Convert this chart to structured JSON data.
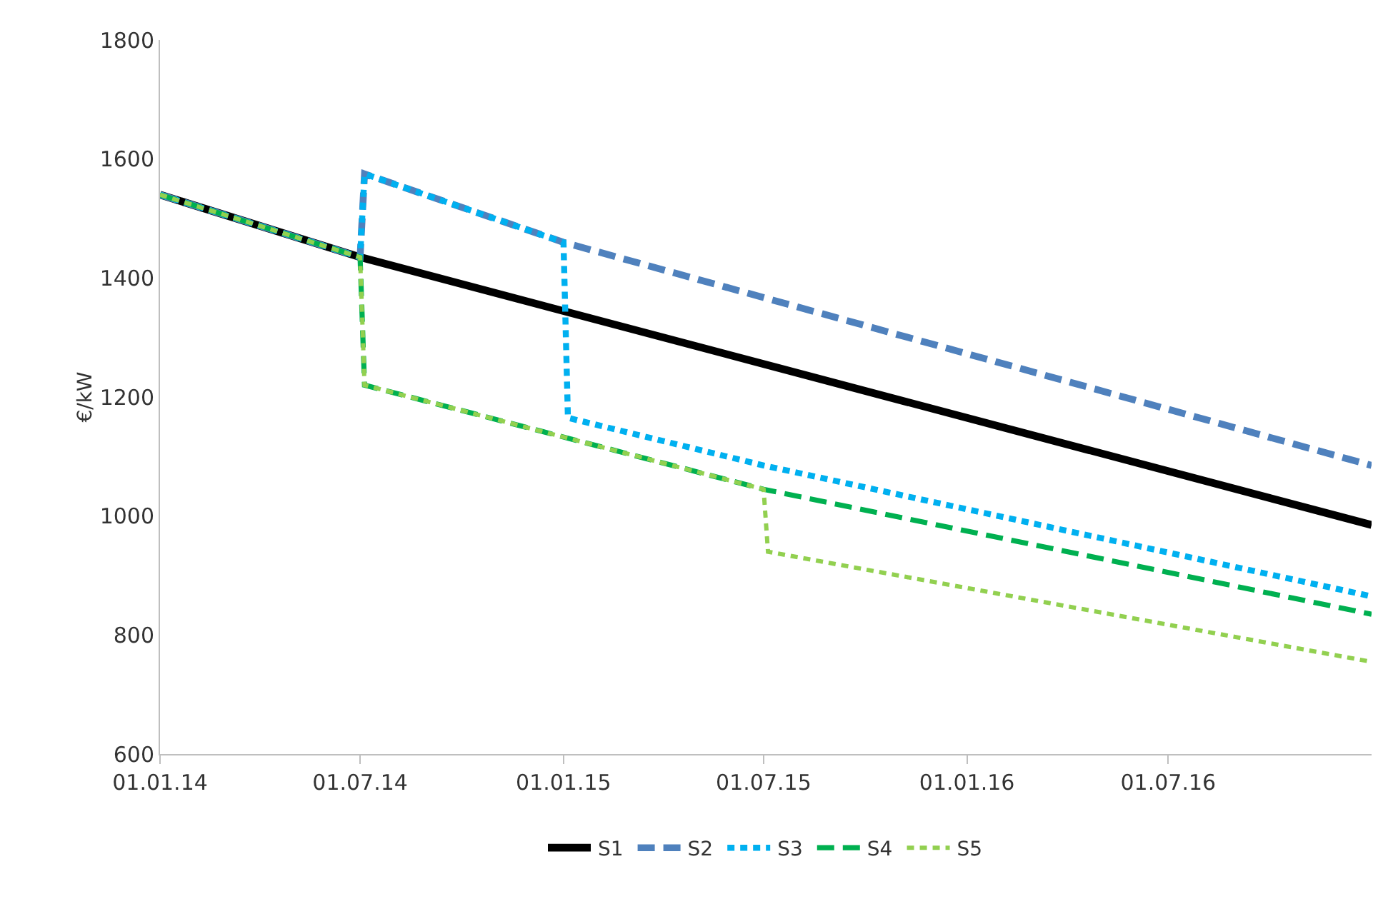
{
  "chart_data": {
    "type": "line",
    "ylabel": "€/kW",
    "ylim": [
      600,
      1800
    ],
    "yticks": [
      600,
      800,
      1000,
      1200,
      1400,
      1600,
      1800
    ],
    "xlim": [
      "2014-01-01",
      "2017-01-01"
    ],
    "xticks": [
      {
        "value": "2014-01-01",
        "label": "01.01.14"
      },
      {
        "value": "2014-07-01",
        "label": "01.07.14"
      },
      {
        "value": "2015-01-01",
        "label": "01.01.15"
      },
      {
        "value": "2015-07-01",
        "label": "01.07.15"
      },
      {
        "value": "2016-01-01",
        "label": "01.01.16"
      },
      {
        "value": "2016-07-01",
        "label": "01.07.16"
      }
    ],
    "grid": false,
    "legend": "bottom",
    "marker": "none",
    "series": [
      {
        "name": "S1",
        "color": "#000000",
        "line_style": "solid",
        "x": [
          "2014-01-01",
          "2014-07-01",
          "2017-01-01"
        ],
        "values": [
          1540,
          1435,
          985
        ]
      },
      {
        "name": "S2",
        "color": "#4f81bd",
        "line_style": "dashed",
        "x": [
          "2014-01-01",
          "2014-07-01",
          "2014-07-05",
          "2015-01-01",
          "2017-01-01"
        ],
        "values": [
          1540,
          1435,
          1575,
          1460,
          1085
        ]
      },
      {
        "name": "S3",
        "color": "#00b0f0",
        "line_style": "dotted",
        "x": [
          "2014-01-01",
          "2014-07-01",
          "2014-07-05",
          "2015-01-01",
          "2015-01-05",
          "2015-07-01",
          "2017-01-01"
        ],
        "values": [
          1540,
          1435,
          1575,
          1460,
          1165,
          1085,
          865
        ]
      },
      {
        "name": "S4",
        "color": "#00b050",
        "line_style": "dashed",
        "x": [
          "2014-01-01",
          "2014-07-01",
          "2014-07-05",
          "2015-07-01",
          "2017-01-01"
        ],
        "values": [
          1540,
          1435,
          1220,
          1045,
          835
        ]
      },
      {
        "name": "S5",
        "color": "#92d050",
        "line_style": "dotted",
        "x": [
          "2014-01-01",
          "2014-07-01",
          "2014-07-05",
          "2015-07-01",
          "2015-07-05",
          "2017-01-01"
        ],
        "values": [
          1540,
          1435,
          1220,
          1045,
          940,
          755
        ]
      }
    ]
  }
}
